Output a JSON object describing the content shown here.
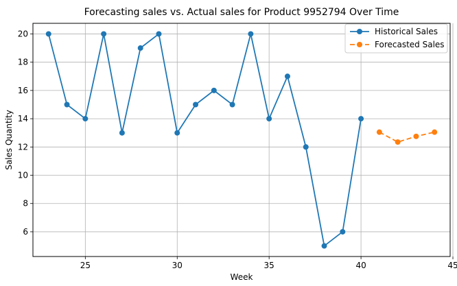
{
  "chart_data": {
    "type": "line",
    "title": "Forecasting sales vs. Actual sales for Product 9952794 Over Time",
    "xlabel": "Week",
    "ylabel": "Sales Quantity",
    "xlim": [
      22.15,
      44.85
    ],
    "ylim": [
      4.25,
      20.75
    ],
    "xticks": [
      25,
      30,
      35,
      40,
      45
    ],
    "yticks": [
      6,
      8,
      10,
      12,
      14,
      16,
      18,
      20
    ],
    "grid": true,
    "legend_position": "top-right",
    "series": [
      {
        "name": "Historical Sales",
        "color": "#1f77b4",
        "style": "solid",
        "marker": "circle",
        "x": [
          23,
          24,
          25,
          26,
          27,
          28,
          29,
          30,
          31,
          32,
          33,
          34,
          35,
          36,
          37,
          38,
          39,
          40
        ],
        "y": [
          20,
          15,
          14,
          20,
          13,
          19,
          20,
          13,
          15,
          16,
          15,
          20,
          14,
          17,
          12,
          5,
          6,
          14
        ]
      },
      {
        "name": "Forecasted Sales",
        "color": "#ff7f0e",
        "style": "dashed",
        "marker": "circle",
        "x": [
          41,
          42,
          43,
          44
        ],
        "y": [
          13.05,
          12.35,
          12.75,
          13.05
        ]
      }
    ]
  }
}
